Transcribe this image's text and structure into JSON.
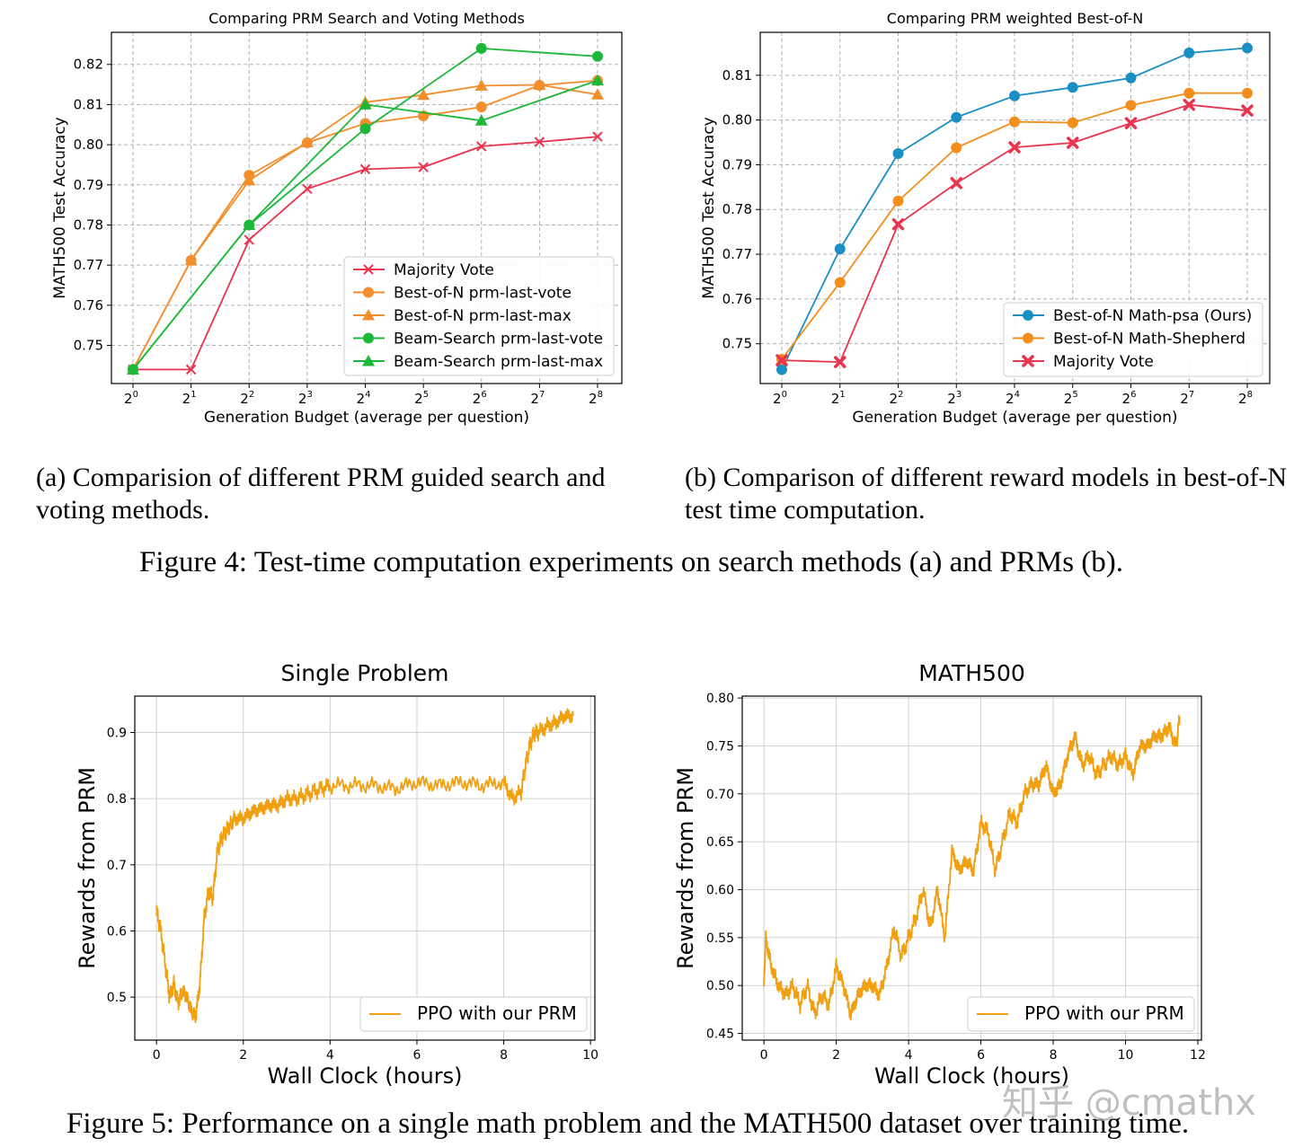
{
  "captions": {
    "sub_a": "(a) Comparision of different PRM guided search and voting methods.",
    "sub_b": "(b) Comparison of different reward models in best-of-N test time computation.",
    "figure4": "Figure 4: Test-time computation experiments on search methods (a) and PRMs (b).",
    "figure5": "Figure 5: Performance on a single math problem and the MATH500 dataset over training time."
  },
  "watermark": "知乎 @cmathx",
  "chart_data": [
    {
      "id": "chart-a",
      "type": "line",
      "title": "Comparing PRM Search and Voting Methods",
      "xlabel": "Generation Budget (average per question)",
      "ylabel": "MATH500 Test Accuracy",
      "x_scale": "log2",
      "x": [
        1,
        2,
        4,
        8,
        16,
        32,
        64,
        128,
        256
      ],
      "xtick_labels": [
        [
          "2",
          "0"
        ],
        [
          "2",
          "1"
        ],
        [
          "2",
          "2"
        ],
        [
          "2",
          "3"
        ],
        [
          "2",
          "4"
        ],
        [
          "2",
          "5"
        ],
        [
          "2",
          "6"
        ],
        [
          "2",
          "7"
        ],
        [
          "2",
          "8"
        ]
      ],
      "ylim": [
        0.7405,
        0.828
      ],
      "yticks": [
        0.75,
        0.76,
        0.77,
        0.78,
        0.79,
        0.8,
        0.81,
        0.82
      ],
      "ytick_labels": [
        "0.75",
        "0.76",
        "0.77",
        "0.78",
        "0.79",
        "0.80",
        "0.81",
        "0.82"
      ],
      "grid": true,
      "legend_position": "bottom-right",
      "series": [
        {
          "name": "Majority Vote",
          "color": "#e8344e",
          "marker": "x",
          "x": [
            1,
            2,
            4,
            8,
            16,
            32,
            64,
            128,
            256
          ],
          "values": [
            0.744,
            0.744,
            0.7763,
            0.789,
            0.7939,
            0.7944,
            0.7996,
            0.8007,
            0.802
          ]
        },
        {
          "name": "Best-of-N prm-last-vote",
          "color": "#f28e2b",
          "marker": "o",
          "x": [
            1,
            2,
            4,
            8,
            16,
            32,
            64,
            128,
            256
          ],
          "values": [
            0.744,
            0.7712,
            0.7924,
            0.8005,
            0.8053,
            0.8072,
            0.8094,
            0.8148,
            0.816
          ]
        },
        {
          "name": "Best-of-N prm-last-max",
          "color": "#f28e2b",
          "marker": "^",
          "x": [
            1,
            2,
            4,
            8,
            16,
            32,
            64,
            128,
            256
          ],
          "values": [
            0.744,
            0.7712,
            0.7911,
            0.8006,
            0.8106,
            0.8124,
            0.8147,
            0.8149,
            0.8125
          ]
        },
        {
          "name": "Beam-Search prm-last-vote",
          "color": "#1db83a",
          "marker": "o",
          "x": [
            1,
            4,
            16,
            64,
            256
          ],
          "values": [
            0.744,
            0.78,
            0.804,
            0.824,
            0.822
          ]
        },
        {
          "name": "Beam-Search prm-last-max",
          "color": "#1db83a",
          "marker": "^",
          "x": [
            1,
            4,
            16,
            64,
            256
          ],
          "values": [
            0.744,
            0.78,
            0.81,
            0.806,
            0.816
          ]
        }
      ]
    },
    {
      "id": "chart-b",
      "type": "line",
      "title": "Comparing PRM weighted Best-of-N",
      "xlabel": "Generation Budget (average per question)",
      "ylabel": "MATH500 Test Accuracy",
      "x_scale": "log2",
      "x": [
        1,
        2,
        4,
        8,
        16,
        32,
        64,
        128,
        256
      ],
      "xtick_labels": [
        [
          "2",
          "0"
        ],
        [
          "2",
          "1"
        ],
        [
          "2",
          "2"
        ],
        [
          "2",
          "3"
        ],
        [
          "2",
          "4"
        ],
        [
          "2",
          "5"
        ],
        [
          "2",
          "6"
        ],
        [
          "2",
          "7"
        ],
        [
          "2",
          "8"
        ]
      ],
      "ylim": [
        0.7411,
        0.8196
      ],
      "yticks": [
        0.75,
        0.76,
        0.77,
        0.78,
        0.79,
        0.8,
        0.81
      ],
      "ytick_labels": [
        "0.75",
        "0.76",
        "0.77",
        "0.78",
        "0.79",
        "0.80",
        "0.81"
      ],
      "grid": true,
      "legend_position": "bottom-right",
      "series": [
        {
          "name": "Best-of-N Math-psa (Ours)",
          "color": "#1a8fc4",
          "marker": "o",
          "x": [
            1,
            2,
            4,
            8,
            16,
            32,
            64,
            128,
            256
          ],
          "values": [
            0.7442,
            0.7712,
            0.7925,
            0.8006,
            0.8054,
            0.8073,
            0.8094,
            0.815,
            0.8161
          ]
        },
        {
          "name": "Best-of-N Math-Shepherd",
          "color": "#f28e1c",
          "marker": "o",
          "x": [
            1,
            2,
            4,
            8,
            16,
            32,
            64,
            128,
            256
          ],
          "values": [
            0.7465,
            0.7637,
            0.7819,
            0.7938,
            0.7996,
            0.7994,
            0.8033,
            0.806,
            0.806
          ]
        },
        {
          "name": "Majority Vote",
          "color": "#e8344e",
          "marker": "X",
          "x": [
            1,
            2,
            4,
            8,
            16,
            32,
            64,
            128,
            256
          ],
          "values": [
            0.7463,
            0.7459,
            0.7767,
            0.7859,
            0.7939,
            0.7949,
            0.7993,
            0.8034,
            0.8021
          ]
        }
      ]
    },
    {
      "id": "chart-c",
      "type": "line",
      "title": "Single Problem",
      "xlabel": "Wall Clock (hours)",
      "ylabel": "Rewards from PRM",
      "xlim": [
        -0.5,
        10.1
      ],
      "xticks": [
        0,
        2,
        4,
        6,
        8,
        10
      ],
      "xtick_labels": [
        "0",
        "2",
        "4",
        "6",
        "8",
        "10"
      ],
      "ylim": [
        0.435,
        0.955
      ],
      "yticks": [
        0.5,
        0.6,
        0.7,
        0.8,
        0.9
      ],
      "ytick_labels": [
        "0.5",
        "0.6",
        "0.7",
        "0.8",
        "0.9"
      ],
      "grid": true,
      "legend_position": "bottom-right",
      "series": [
        {
          "name": "PPO with our PRM",
          "color": "#f0a010",
          "x": [
            0,
            0.1,
            0.2,
            0.3,
            0.4,
            0.5,
            0.6,
            0.7,
            0.8,
            0.9,
            1.0,
            1.1,
            1.2,
            1.3,
            1.4,
            1.5,
            1.6,
            1.7,
            1.8,
            2.0,
            2.2,
            2.4,
            2.6,
            2.8,
            3.0,
            3.2,
            3.4,
            3.6,
            3.8,
            4.0,
            4.5,
            5.0,
            5.5,
            6.0,
            6.5,
            7.0,
            7.5,
            8.0,
            8.2,
            8.4,
            8.5,
            8.6,
            8.7,
            8.8,
            9.0,
            9.2,
            9.4,
            9.6
          ],
          "values": [
            0.63,
            0.6,
            0.55,
            0.5,
            0.52,
            0.49,
            0.51,
            0.5,
            0.48,
            0.47,
            0.52,
            0.62,
            0.66,
            0.65,
            0.72,
            0.74,
            0.75,
            0.76,
            0.77,
            0.77,
            0.78,
            0.785,
            0.79,
            0.79,
            0.8,
            0.8,
            0.805,
            0.81,
            0.815,
            0.82,
            0.82,
            0.82,
            0.815,
            0.825,
            0.82,
            0.825,
            0.82,
            0.825,
            0.8,
            0.81,
            0.85,
            0.88,
            0.9,
            0.9,
            0.91,
            0.915,
            0.925,
            0.925
          ]
        }
      ]
    },
    {
      "id": "chart-d",
      "type": "line",
      "title": "MATH500",
      "xlabel": "Wall Clock (hours)",
      "ylabel": "Rewards from PRM",
      "xlim": [
        -0.6,
        12.1
      ],
      "xticks": [
        0,
        2,
        4,
        6,
        8,
        10,
        12
      ],
      "xtick_labels": [
        "0",
        "2",
        "4",
        "6",
        "8",
        "10",
        "12"
      ],
      "ylim": [
        0.443,
        0.802
      ],
      "yticks": [
        0.45,
        0.5,
        0.55,
        0.6,
        0.65,
        0.7,
        0.75,
        0.8
      ],
      "ytick_labels": [
        "0.45",
        "0.50",
        "0.55",
        "0.60",
        "0.65",
        "0.70",
        "0.75",
        "0.80"
      ],
      "grid": true,
      "legend_position": "bottom-right",
      "series": [
        {
          "name": "PPO with our PRM",
          "color": "#f0a010",
          "x": [
            0,
            0.05,
            0.2,
            0.4,
            0.6,
            0.8,
            1.0,
            1.2,
            1.4,
            1.6,
            1.8,
            2.0,
            2.2,
            2.4,
            2.6,
            2.8,
            3.0,
            3.2,
            3.4,
            3.6,
            3.8,
            4.0,
            4.2,
            4.4,
            4.6,
            4.8,
            5.0,
            5.2,
            5.4,
            5.6,
            5.8,
            6.0,
            6.2,
            6.4,
            6.6,
            6.8,
            7.0,
            7.2,
            7.4,
            7.6,
            7.8,
            8.0,
            8.2,
            8.4,
            8.6,
            8.8,
            9.0,
            9.2,
            9.4,
            9.6,
            9.8,
            10.0,
            10.2,
            10.4,
            10.6,
            10.8,
            11.0,
            11.2,
            11.4,
            11.5
          ],
          "values": [
            0.5,
            0.55,
            0.52,
            0.5,
            0.49,
            0.5,
            0.48,
            0.5,
            0.47,
            0.49,
            0.48,
            0.52,
            0.5,
            0.47,
            0.49,
            0.5,
            0.5,
            0.49,
            0.52,
            0.56,
            0.53,
            0.55,
            0.57,
            0.6,
            0.56,
            0.6,
            0.55,
            0.64,
            0.62,
            0.63,
            0.62,
            0.67,
            0.66,
            0.62,
            0.65,
            0.68,
            0.67,
            0.7,
            0.71,
            0.71,
            0.73,
            0.7,
            0.71,
            0.74,
            0.76,
            0.73,
            0.74,
            0.72,
            0.73,
            0.74,
            0.73,
            0.74,
            0.72,
            0.75,
            0.75,
            0.76,
            0.76,
            0.77,
            0.75,
            0.78
          ]
        }
      ]
    }
  ]
}
